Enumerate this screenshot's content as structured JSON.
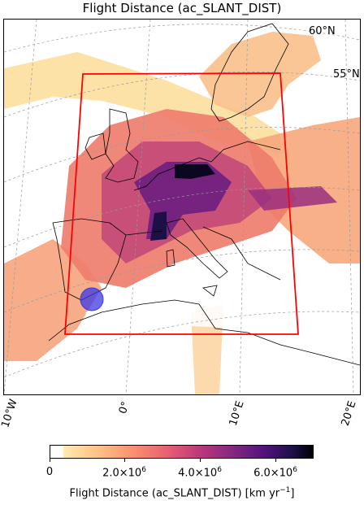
{
  "title": "Flight Distance (ac_SLANT_DIST)",
  "lat_labels": [
    "60°N",
    "55°N"
  ],
  "lon_labels": [
    "10°W",
    "0°",
    "10°E",
    "20°E"
  ],
  "colorbar": {
    "colormap": "magma_r",
    "range": [
      0,
      7000000
    ],
    "ticks": [
      "0",
      "2.0×10",
      "4.0×10",
      "6.0×10"
    ],
    "tick_exponent": "6",
    "label": "Flight Distance (ac_SLANT_DIST) [km yr",
    "label_exponent": "−1",
    "label_tail": "]"
  },
  "overlay": {
    "domain_box_color": "#ff0000",
    "marker_color": "#3a3ae6",
    "coastline_color": "#000000",
    "gridline_color": "#999999"
  }
}
